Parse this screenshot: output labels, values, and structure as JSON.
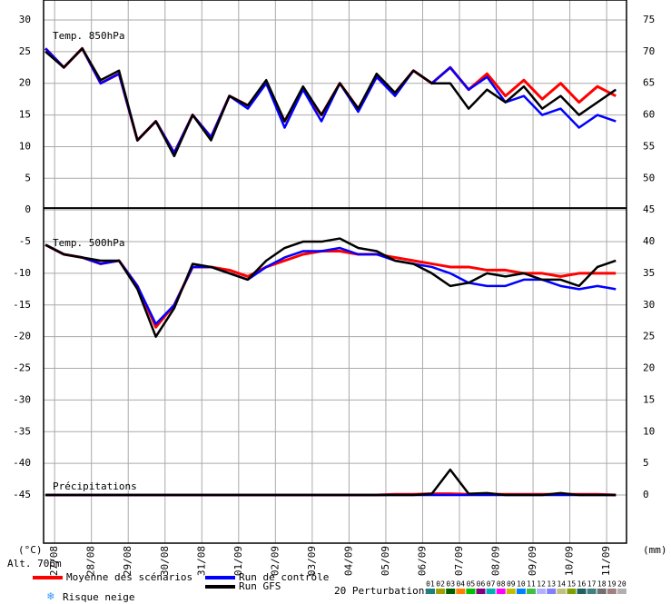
{
  "chart_data": {
    "type": "line",
    "y_unit_label": "(°C)",
    "y2_unit_label": "(mm)",
    "altitude": "Alt. 706m",
    "snow_label": "Risque neige",
    "perturbations_label": "20 Perturbations",
    "perturbations": [
      {
        "name": "01",
        "color": "#208080"
      },
      {
        "name": "02",
        "color": "#a0a000"
      },
      {
        "name": "03",
        "color": "#006000"
      },
      {
        "name": "04",
        "color": "#ff8000"
      },
      {
        "name": "05",
        "color": "#00c000"
      },
      {
        "name": "06",
        "color": "#800080"
      },
      {
        "name": "07",
        "color": "#00b0b0"
      },
      {
        "name": "08",
        "color": "#ff00ff"
      },
      {
        "name": "09",
        "color": "#c0c000"
      },
      {
        "name": "10",
        "color": "#0080ff"
      },
      {
        "name": "11",
        "color": "#40c040"
      },
      {
        "name": "12",
        "color": "#b0b0ff"
      },
      {
        "name": "13",
        "color": "#8080ff"
      },
      {
        "name": "14",
        "color": "#c0c080"
      },
      {
        "name": "15",
        "color": "#80a000"
      },
      {
        "name": "16",
        "color": "#206060"
      },
      {
        "name": "17",
        "color": "#408080"
      },
      {
        "name": "18",
        "color": "#707070"
      },
      {
        "name": "19",
        "color": "#a08080"
      },
      {
        "name": "20",
        "color": "#b0b0b0"
      }
    ],
    "x": [
      -0.25,
      0.25,
      0.75,
      1.25,
      1.75,
      2.25,
      2.75,
      3.25,
      3.75,
      4.25,
      4.75,
      5.25,
      5.75,
      6.25,
      6.75,
      7.25,
      7.75,
      8.25,
      8.75,
      9.25,
      9.75,
      10.25,
      10.75,
      11.25,
      11.75,
      12.25,
      12.75,
      13.25,
      13.75,
      14.25,
      14.75,
      15.25
    ],
    "xlim": [
      -0.3,
      15.54
    ],
    "xticks": [
      {
        "value": 0,
        "label": "27/08"
      },
      {
        "value": 1,
        "label": "28/08"
      },
      {
        "value": 2,
        "label": "29/08"
      },
      {
        "value": 3,
        "label": "30/08"
      },
      {
        "value": 4,
        "label": "31/08"
      },
      {
        "value": 5,
        "label": "01/09"
      },
      {
        "value": 6,
        "label": "02/09"
      },
      {
        "value": 7,
        "label": "03/09"
      },
      {
        "value": 8,
        "label": "04/09"
      },
      {
        "value": 9,
        "label": "05/09"
      },
      {
        "value": 10,
        "label": "06/09"
      },
      {
        "value": 11,
        "label": "07/09"
      },
      {
        "value": 12,
        "label": "08/09"
      },
      {
        "value": 13,
        "label": "09/09"
      },
      {
        "value": 14,
        "label": "10/09"
      },
      {
        "value": 15,
        "label": "11/09"
      }
    ],
    "ylim": [
      -52.6,
      33.15
    ],
    "yticks": [
      30,
      25,
      20,
      15,
      10,
      5,
      0,
      -5,
      -10,
      -15,
      -20,
      -25,
      -30,
      -35,
      -40,
      -45
    ],
    "y2lim": [
      -7.6,
      78.15
    ],
    "y2ticks": [
      75,
      70,
      65,
      60,
      55,
      50,
      45,
      40,
      35,
      30,
      25,
      20,
      15,
      10,
      5,
      0
    ],
    "grid": true,
    "panels": [
      {
        "label": "Temp. 850hPa",
        "series": [
          {
            "name": "Moyenne des scénarios",
            "color": "#ff0000",
            "values": [
              25.5,
              22.5,
              25.5,
              20,
              21.5,
              11,
              14,
              9,
              15,
              11.5,
              18,
              16.5,
              20,
              14,
              19,
              15,
              20,
              16,
              21,
              18.5,
              22,
              20,
              22.5,
              19,
              21.5,
              18,
              20.5,
              17.5,
              20,
              17,
              19.5,
              18
            ]
          },
          {
            "name": "Run de contrôle",
            "color": "#0000ff",
            "values": [
              25.5,
              22.5,
              25.5,
              20,
              21.5,
              11,
              14,
              9,
              15,
              11.5,
              18,
              16,
              20,
              13,
              19,
              14,
              20,
              15.5,
              21,
              18,
              22,
              20,
              22.5,
              19,
              21,
              17,
              18,
              15,
              16,
              13,
              15,
              14
            ]
          },
          {
            "name": "Run GFS",
            "color": "#000000",
            "values": [
              25,
              22.5,
              25.5,
              20.5,
              22,
              11,
              14,
              8.5,
              15,
              11,
              18,
              16.5,
              20.5,
              14,
              19.5,
              15,
              20,
              16,
              21.5,
              18.5,
              22,
              20,
              20,
              16,
              19,
              17,
              19.5,
              16,
              18,
              15,
              17,
              19
            ]
          }
        ]
      },
      {
        "label": "Temp. 500hPa",
        "series": [
          {
            "name": "Moyenne des scénarios",
            "color": "#ff0000",
            "values": [
              -5.5,
              -7,
              -7.5,
              -8.5,
              -8,
              -12,
              -18.5,
              -15,
              -9,
              -9,
              -9.5,
              -10.5,
              -9,
              -8,
              -7,
              -6.5,
              -6.5,
              -7,
              -7,
              -7.5,
              -8,
              -8.5,
              -9,
              -9,
              -9.5,
              -9.5,
              -10,
              -10,
              -10.5,
              -10,
              -10,
              -10
            ]
          },
          {
            "name": "Run de contrôle",
            "color": "#0000ff",
            "values": [
              -5.5,
              -7,
              -7.5,
              -8.5,
              -8,
              -12,
              -18,
              -15,
              -9,
              -9,
              -10,
              -11,
              -9,
              -7.5,
              -6.5,
              -6.5,
              -6,
              -7,
              -7,
              -8,
              -8.5,
              -9,
              -10,
              -11.5,
              -12,
              -12,
              -11,
              -11,
              -12,
              -12.5,
              -12,
              -12.5
            ]
          },
          {
            "name": "Run GFS",
            "color": "#000000",
            "values": [
              -5.5,
              -7,
              -7.5,
              -8,
              -8,
              -12.5,
              -20,
              -15.5,
              -8.5,
              -9,
              -10,
              -11,
              -8,
              -6,
              -5,
              -5,
              -4.5,
              -6,
              -6.5,
              -8,
              -8.5,
              -10,
              -12,
              -11.5,
              -10,
              -10.5,
              -10,
              -11,
              -11,
              -12,
              -9,
              -8
            ]
          }
        ]
      },
      {
        "label": "Précipitations",
        "series": [
          {
            "name": "Moyenne des scénarios",
            "color": "#ff0000",
            "axis": "y2",
            "values": [
              0,
              0,
              0,
              0,
              0,
              0,
              0,
              0,
              0,
              0,
              0,
              0,
              0,
              0,
              0,
              0,
              0,
              0,
              0,
              0.1,
              0.1,
              0.2,
              0.2,
              0.1,
              0.1,
              0.1,
              0.1,
              0.1,
              0.1,
              0.1,
              0.1,
              0
            ]
          },
          {
            "name": "Run de contrôle",
            "color": "#0000ff",
            "axis": "y2",
            "values": [
              0,
              0,
              0,
              0,
              0,
              0,
              0,
              0,
              0,
              0,
              0,
              0,
              0,
              0,
              0,
              0,
              0,
              0,
              0,
              0,
              0,
              0,
              0,
              0,
              0,
              0,
              0,
              0,
              0,
              0,
              0,
              0
            ]
          },
          {
            "name": "Run GFS",
            "color": "#000000",
            "axis": "y2",
            "values": [
              0,
              0,
              0,
              0,
              0,
              0,
              0,
              0,
              0,
              0,
              0,
              0,
              0,
              0,
              0,
              0,
              0,
              0,
              0,
              0,
              0,
              0.2,
              4,
              0.2,
              0.3,
              0,
              0,
              0,
              0.3,
              0,
              0,
              0
            ]
          }
        ]
      }
    ]
  }
}
